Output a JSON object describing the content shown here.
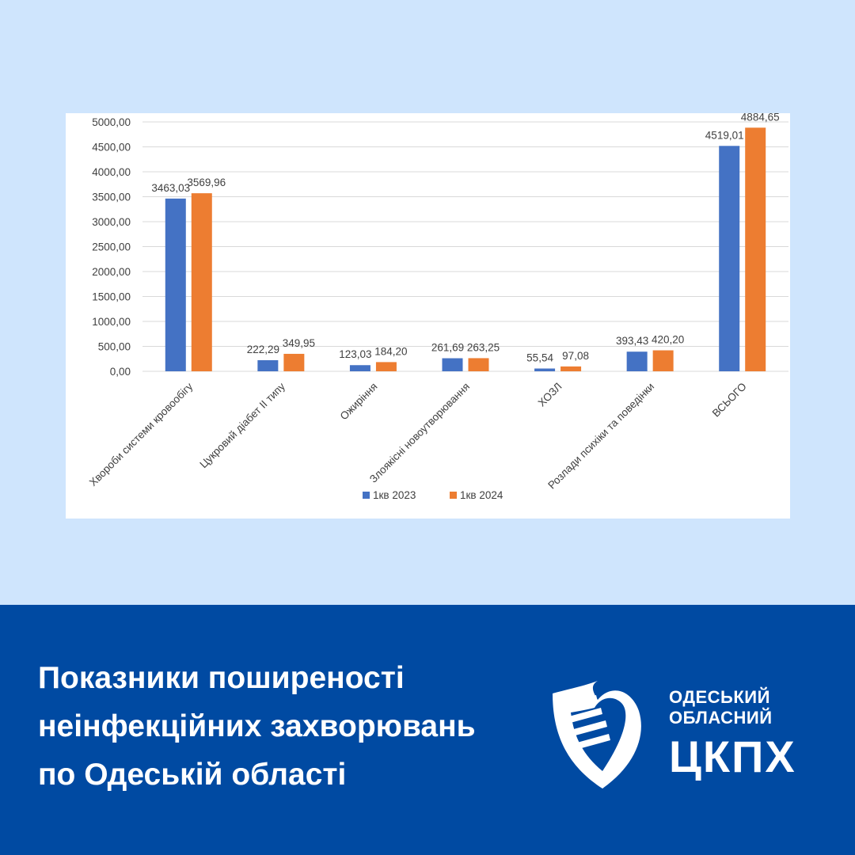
{
  "chart_data": {
    "type": "bar",
    "title": "",
    "xlabel": "",
    "ylabel": "",
    "ylim": [
      0,
      5000
    ],
    "y_ticks": [
      "0,00",
      "500,00",
      "1000,00",
      "1500,00",
      "2000,00",
      "2500,00",
      "3000,00",
      "3500,00",
      "4000,00",
      "4500,00",
      "5000,00"
    ],
    "grid": true,
    "legend_position": "bottom",
    "categories": [
      "Хвороби системи кровообігу",
      "Цукровий діабет ІІ типу",
      "Ожиріння",
      "Злоякісні новоутворювання",
      "ХОЗЛ",
      "Розлади психіки та поведінки",
      "ВСЬОГО"
    ],
    "series": [
      {
        "name": "1кв 2023",
        "color": "#4472c4",
        "values": [
          3463.03,
          222.29,
          123.03,
          261.69,
          55.54,
          393.43,
          4519.01
        ],
        "labels": [
          "3463,03",
          "222,29",
          "123,03",
          "261,69",
          "55,54",
          "393,43",
          "4519,01"
        ]
      },
      {
        "name": "1кв 2024",
        "color": "#ed7d31",
        "values": [
          3569.96,
          349.95,
          184.2,
          263.25,
          97.08,
          420.2,
          4884.65
        ],
        "labels": [
          "3569,96",
          "349,95",
          "184,20",
          "263,25",
          "97,08",
          "420,20",
          "4884,65"
        ]
      }
    ]
  },
  "banner": {
    "background": "#004aa2",
    "headline_lines": [
      "Показники поширеності",
      "неінфекційних захворювань",
      "по Одеській області"
    ]
  },
  "logo": {
    "icon": "shield-heart-icon",
    "line1": "ОДЕСЬКИЙ",
    "line2": "ОБЛАСНИЙ",
    "abbr": "ЦКПХ"
  },
  "colors": {
    "page_background": "#cfe5fd",
    "chart_background": "#ffffff"
  }
}
